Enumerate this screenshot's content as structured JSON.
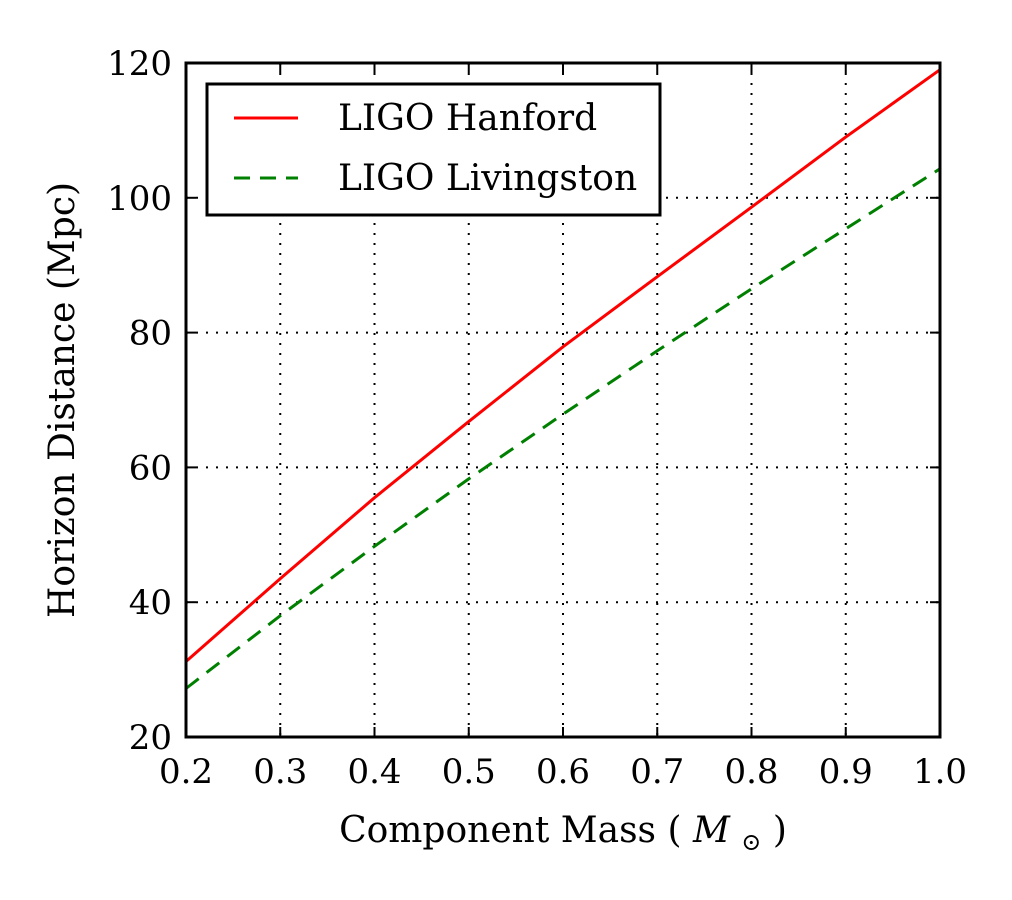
{
  "chart_data": {
    "type": "line",
    "title": "",
    "xlabel": "Component Mass",
    "xlabel_unit": "M",
    "xlabel_unit_subscript": "⊙",
    "ylabel": "Horizon Distance (Mpc)",
    "xlim": [
      0.2,
      1.0
    ],
    "ylim": [
      20,
      120
    ],
    "xticks": [
      0.2,
      0.3,
      0.4,
      0.5,
      0.6,
      0.7,
      0.8,
      0.9,
      1.0
    ],
    "yticks": [
      20,
      40,
      60,
      80,
      100,
      120
    ],
    "xtick_labels": [
      "0.2",
      "0.3",
      "0.4",
      "0.5",
      "0.6",
      "0.7",
      "0.8",
      "0.9",
      "1.0"
    ],
    "ytick_labels": [
      "20",
      "40",
      "60",
      "80",
      "100",
      "120"
    ],
    "grid": true,
    "legend_position": "top-left",
    "series": [
      {
        "name": "LIGO Hanford",
        "color": "#ff0000",
        "style": "solid",
        "x": [
          0.2,
          0.3,
          0.4,
          0.5,
          0.6,
          0.7,
          0.8,
          0.9,
          1.0
        ],
        "y": [
          31.2,
          43.5,
          55.5,
          66.8,
          77.9,
          88.3,
          98.6,
          109.0,
          119.0
        ]
      },
      {
        "name": "LIGO Livingston",
        "color": "#008000",
        "style": "dashed",
        "x": [
          0.2,
          0.3,
          0.4,
          0.5,
          0.6,
          0.7,
          0.8,
          0.9,
          1.0
        ],
        "y": [
          27.2,
          38.0,
          48.3,
          58.3,
          67.9,
          77.3,
          86.5,
          95.4,
          104.3
        ]
      }
    ]
  }
}
